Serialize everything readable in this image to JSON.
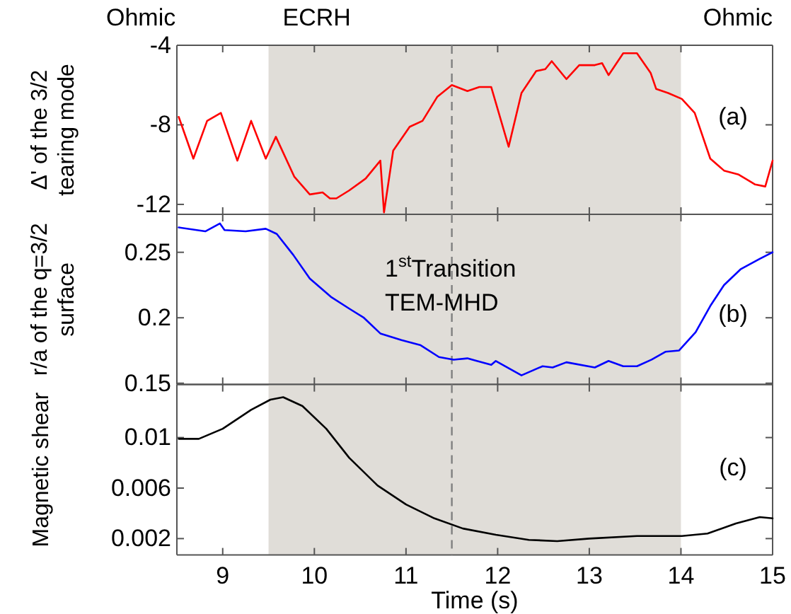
{
  "chart_data": [
    {
      "type": "line",
      "ylabel": "Δ' of the 3/2 tearing mode",
      "xlim": [
        8.5,
        15
      ],
      "xticks": [
        9,
        10,
        11,
        12,
        13,
        14,
        15
      ],
      "ylim": [
        -12.5,
        -4
      ],
      "yticks": [
        -12,
        -8,
        -4
      ],
      "tick_labels": "y",
      "annotations": [
        "Ohmic",
        "Ohmic",
        "(a)"
      ],
      "bands": [
        {
          "axis": "x",
          "from": 9.5,
          "to": 14,
          "label": "ECRH",
          "color": "#e0ddd8"
        }
      ],
      "ref_lines": [
        {
          "axis": "x",
          "value": 11.5,
          "color": "#808080",
          "line_style": "dashed"
        }
      ],
      "series": [
        {
          "color": "#ff0000",
          "x": [
            8.52,
            8.68,
            8.83,
            8.98,
            9.16,
            9.31,
            9.47,
            9.58,
            9.78,
            9.95,
            10.09,
            10.17,
            10.24,
            10.38,
            10.56,
            10.72,
            10.76,
            10.86,
            11.04,
            11.18,
            11.34,
            11.5,
            11.67,
            11.8,
            11.93,
            12.12,
            12.26,
            12.42,
            12.52,
            12.59,
            12.75,
            12.89,
            13.06,
            13.14,
            13.21,
            13.37,
            13.52,
            13.67,
            13.73,
            13.86,
            14.01,
            14.15,
            14.32,
            14.47,
            14.63,
            14.81,
            14.92,
            15.0
          ],
          "values": [
            -7.6,
            -9.7,
            -7.8,
            -7.4,
            -9.8,
            -7.8,
            -9.7,
            -8.6,
            -10.6,
            -11.5,
            -11.4,
            -11.7,
            -11.7,
            -11.3,
            -10.7,
            -9.8,
            -12.4,
            -9.3,
            -8.1,
            -7.8,
            -6.6,
            -6.0,
            -6.3,
            -6.1,
            -6.1,
            -9.1,
            -6.4,
            -5.3,
            -5.2,
            -4.8,
            -5.7,
            -5.0,
            -5.0,
            -4.9,
            -5.5,
            -4.4,
            -4.4,
            -5.4,
            -6.2,
            -6.4,
            -6.7,
            -7.4,
            -9.7,
            -10.3,
            -10.5,
            -11.0,
            -11.1,
            -9.8
          ]
        }
      ]
    },
    {
      "type": "line",
      "ylabel": "r/a of the q=3/2 surface",
      "xlim": [
        8.5,
        15
      ],
      "xticks": [
        9,
        10,
        11,
        12,
        13,
        14,
        15
      ],
      "ylim": [
        0.149,
        0.279
      ],
      "yticks": [
        0.15,
        0.2,
        0.25
      ],
      "tick_labels": "y",
      "annotations": [
        "1$^{st}$Transition",
        "TEM-MHD",
        "(b)"
      ],
      "bands": [
        {
          "axis": "x",
          "from": 9.5,
          "to": 14,
          "color": "#e0ddd8"
        }
      ],
      "ref_lines": [
        {
          "axis": "x",
          "value": 11.5,
          "color": "#808080",
          "line_style": "dashed"
        }
      ],
      "series": [
        {
          "color": "#0000ff",
          "x": [
            8.52,
            8.81,
            8.97,
            9.02,
            9.25,
            9.47,
            9.59,
            9.77,
            9.95,
            10.18,
            10.38,
            10.54,
            10.72,
            10.95,
            11.16,
            11.36,
            11.52,
            11.67,
            11.93,
            11.98,
            12.26,
            12.49,
            12.6,
            12.75,
            13.06,
            13.21,
            13.37,
            13.52,
            13.68,
            13.83,
            13.98,
            14.16,
            14.32,
            14.47,
            14.65,
            14.86,
            15.0
          ],
          "values": [
            0.269,
            0.266,
            0.272,
            0.267,
            0.266,
            0.268,
            0.264,
            0.248,
            0.23,
            0.216,
            0.207,
            0.2,
            0.188,
            0.183,
            0.179,
            0.17,
            0.168,
            0.169,
            0.164,
            0.167,
            0.156,
            0.163,
            0.162,
            0.166,
            0.162,
            0.167,
            0.163,
            0.163,
            0.168,
            0.174,
            0.175,
            0.189,
            0.209,
            0.225,
            0.237,
            0.245,
            0.25
          ]
        }
      ]
    },
    {
      "type": "line",
      "ylabel": "Magnetic shear",
      "xlabel": "Time (s)",
      "xlim": [
        8.5,
        15
      ],
      "xticks": [
        9,
        10,
        11,
        12,
        13,
        14,
        15
      ],
      "ylim": [
        0.0007,
        0.0142
      ],
      "yticks": [
        0.002,
        0.006,
        0.01
      ],
      "annotations": [
        "(c)"
      ],
      "bands": [
        {
          "axis": "x",
          "from": 9.5,
          "to": 14,
          "color": "#e0ddd8"
        }
      ],
      "ref_lines": [
        {
          "axis": "x",
          "value": 11.5,
          "color": "#808080",
          "line_style": "dashed"
        }
      ],
      "series": [
        {
          "color": "#000000",
          "x": [
            8.52,
            8.74,
            9.0,
            9.31,
            9.52,
            9.66,
            9.87,
            10.13,
            10.38,
            10.69,
            11.0,
            11.31,
            11.62,
            11.98,
            12.34,
            12.65,
            13.0,
            13.52,
            14.01,
            14.29,
            14.6,
            14.86,
            15.0
          ],
          "values": [
            0.0099,
            0.0099,
            0.0107,
            0.0122,
            0.013,
            0.0132,
            0.0125,
            0.0107,
            0.0084,
            0.0062,
            0.0047,
            0.0036,
            0.0028,
            0.0023,
            0.0019,
            0.0018,
            0.002,
            0.0022,
            0.0022,
            0.0024,
            0.0032,
            0.0037,
            0.0036
          ]
        }
      ]
    }
  ]
}
